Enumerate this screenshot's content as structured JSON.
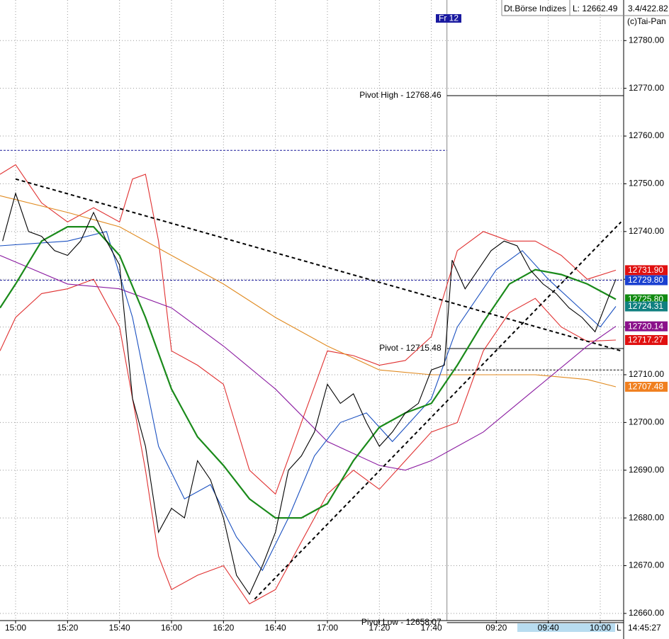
{
  "header": {
    "source": "Dt.Börse Indizes",
    "low": "L: 12662.49",
    "stats": "3.4/422.82",
    "brand": "(c)Tai-Pan",
    "day": "Fr 12",
    "clock": "14:45:27",
    "scale_mode": "L"
  },
  "chart_data": {
    "type": "line",
    "xlim": [
      -6,
      234
    ],
    "ylim": [
      12658.5,
      12788.5
    ],
    "xticks": [
      {
        "value": 0,
        "label": "15:00"
      },
      {
        "value": 20,
        "label": "15:20"
      },
      {
        "value": 40,
        "label": "15:40"
      },
      {
        "value": 60,
        "label": "16:00"
      },
      {
        "value": 80,
        "label": "16:20"
      },
      {
        "value": 100,
        "label": "16:40"
      },
      {
        "value": 120,
        "label": "17:00"
      },
      {
        "value": 140,
        "label": "17:20"
      },
      {
        "value": 160,
        "label": "17:40"
      },
      {
        "value": 185,
        "label": "09:20"
      },
      {
        "value": 205,
        "label": "09:40"
      },
      {
        "value": 225,
        "label": "10:00"
      }
    ],
    "yticks": [
      {
        "value": 12660,
        "label": "12660.00"
      },
      {
        "value": 12670,
        "label": "12670.00"
      },
      {
        "value": 12680,
        "label": "12680.00"
      },
      {
        "value": 12690,
        "label": "12690.00"
      },
      {
        "value": 12700,
        "label": "12700.00"
      },
      {
        "value": 12710,
        "label": "12710.00"
      },
      {
        "value": 12720,
        "label": "12720.00"
      },
      {
        "value": 12730,
        "label": "12730.00"
      },
      {
        "value": 12740,
        "label": "12740.00"
      },
      {
        "value": 12750,
        "label": "12750.00"
      },
      {
        "value": 12760,
        "label": "12760.00"
      },
      {
        "value": 12770,
        "label": "12770.00"
      },
      {
        "value": 12780,
        "label": "12780.00"
      }
    ],
    "grid": true,
    "session_break": 166,
    "series": [
      {
        "color": "#e03030",
        "x": [
          -6,
          0,
          10,
          20,
          30,
          40,
          45,
          50,
          55,
          60,
          70,
          80,
          90,
          100,
          110,
          120,
          130,
          140,
          150,
          160,
          170,
          180,
          190,
          200,
          210,
          220,
          231
        ],
        "values": [
          12752,
          12754,
          12746,
          12742,
          12745,
          12742,
          12751,
          12752,
          12738,
          12715,
          12712,
          12708,
          12690,
          12685,
          12700,
          12715,
          12714,
          12712,
          12713,
          12718,
          12736,
          12740,
          12738,
          12738,
          12735,
          12730,
          12731.9
        ]
      },
      {
        "color": "#e03030",
        "x": [
          -6,
          0,
          10,
          20,
          30,
          40,
          50,
          55,
          60,
          70,
          80,
          90,
          100,
          110,
          120,
          130,
          140,
          150,
          160,
          170,
          180,
          190,
          200,
          210,
          220,
          231
        ],
        "values": [
          12715,
          12722,
          12727,
          12728,
          12730,
          12720,
          12690,
          12672,
          12665,
          12668,
          12670,
          12662,
          12665,
          12675,
          12685,
          12690,
          12686,
          12692,
          12698,
          12700,
          12715,
          12723,
          12726,
          12720,
          12717,
          12717.27
        ]
      },
      {
        "color": "#e08a20",
        "x": [
          -6,
          20,
          40,
          60,
          80,
          100,
          120,
          140,
          160,
          180,
          200,
          220,
          231
        ],
        "values": [
          12747.5,
          12744,
          12741,
          12735,
          12729,
          12722,
          12716,
          12711,
          12710,
          12710,
          12710,
          12709,
          12707.48
        ]
      },
      {
        "color": "#8a1aa0",
        "x": [
          -6,
          20,
          40,
          60,
          80,
          100,
          120,
          140,
          150,
          160,
          180,
          200,
          220,
          231
        ],
        "values": [
          12735,
          12729,
          12728,
          12724,
          12716,
          12707,
          12696,
          12691,
          12690,
          12692,
          12698,
          12707,
          12716,
          12720.14
        ]
      },
      {
        "color": "#1a50c0",
        "x": [
          -6,
          20,
          35,
          45,
          55,
          65,
          75,
          85,
          95,
          105,
          115,
          125,
          135,
          145,
          160,
          170,
          185,
          195,
          205,
          215,
          225,
          231
        ],
        "values": [
          12737,
          12738,
          12740,
          12722,
          12695,
          12684,
          12687,
          12676,
          12669,
          12680,
          12693,
          12700,
          12702,
          12696,
          12705,
          12720,
          12732,
          12736,
          12730,
          12725,
          12720,
          12724.31
        ]
      },
      {
        "color": "#1a8a1a",
        "x": [
          -6,
          0,
          10,
          20,
          30,
          40,
          50,
          60,
          70,
          80,
          90,
          100,
          110,
          120,
          130,
          140,
          150,
          160,
          170,
          180,
          190,
          200,
          210,
          220,
          231
        ],
        "values": [
          12724,
          12729,
          12738,
          12741,
          12741,
          12735,
          12722,
          12707,
          12697,
          12691,
          12684,
          12680,
          12680,
          12683,
          12692,
          12699,
          12702,
          12704,
          12712,
          12721,
          12729,
          12732,
          12731,
          12729,
          12725.8
        ]
      },
      {
        "color": "#000000",
        "x": [
          -5,
          0,
          5,
          10,
          15,
          20,
          25,
          30,
          35,
          40,
          45,
          50,
          55,
          60,
          65,
          70,
          75,
          80,
          85,
          90,
          95,
          100,
          105,
          110,
          115,
          120,
          125,
          130,
          135,
          140,
          145,
          150,
          155,
          160,
          165,
          168,
          173,
          178,
          183,
          188,
          193,
          198,
          203,
          208,
          213,
          218,
          223,
          228,
          231
        ],
        "values": [
          12738,
          12748,
          12740,
          12739,
          12736,
          12735,
          12738,
          12744,
          12738,
          12733,
          12705,
          12695,
          12677,
          12682,
          12680,
          12692,
          12688,
          12680,
          12668,
          12664,
          12670,
          12677,
          12690,
          12693,
          12698,
          12708,
          12704,
          12706,
          12700,
          12695,
          12698,
          12702,
          12704,
          12711,
          12712,
          12734,
          12728,
          12732,
          12736,
          12738,
          12737,
          12732,
          12729,
          12727,
          12724,
          12722,
          12719,
          12726,
          12730
        ]
      }
    ],
    "pivots": [
      {
        "label": "Pivot High - 12768.46",
        "value": 12768.46
      },
      {
        "label": "Pivot - 12715.48",
        "value": 12715.48
      },
      {
        "label": "Pivot Low - 12658.07",
        "value": 12658.07
      }
    ],
    "levels": [
      {
        "value": 12757,
        "x": [
          -6,
          166
        ],
        "color": "#1a1a9a"
      },
      {
        "value": 12729.8,
        "x": [
          -6,
          234
        ],
        "color": "#1a1a9a"
      },
      {
        "value": 12711,
        "x": [
          166,
          234
        ],
        "color": "#000000"
      }
    ],
    "trendlines": [
      {
        "x": [
          0,
          233
        ],
        "y": [
          12751,
          12715
        ]
      },
      {
        "x": [
          92,
          233
        ],
        "y": [
          12663,
          12742
        ]
      }
    ],
    "price_tags": [
      {
        "value": 12731.9,
        "label": "12731.90",
        "color": "#e01010"
      },
      {
        "value": 12729.8,
        "label": "12729.80",
        "color": "#1a40d0"
      },
      {
        "value": 12725.8,
        "label": "12725.80",
        "color": "#108a10"
      },
      {
        "value": 12724.31,
        "label": "12724.31",
        "color": "#108080"
      },
      {
        "value": 12720.14,
        "label": "12720.14",
        "color": "#8a108a"
      },
      {
        "value": 12717.27,
        "label": "12717.27",
        "color": "#e01010"
      },
      {
        "value": 12707.48,
        "label": "12707.48",
        "color": "#f08020"
      }
    ]
  }
}
